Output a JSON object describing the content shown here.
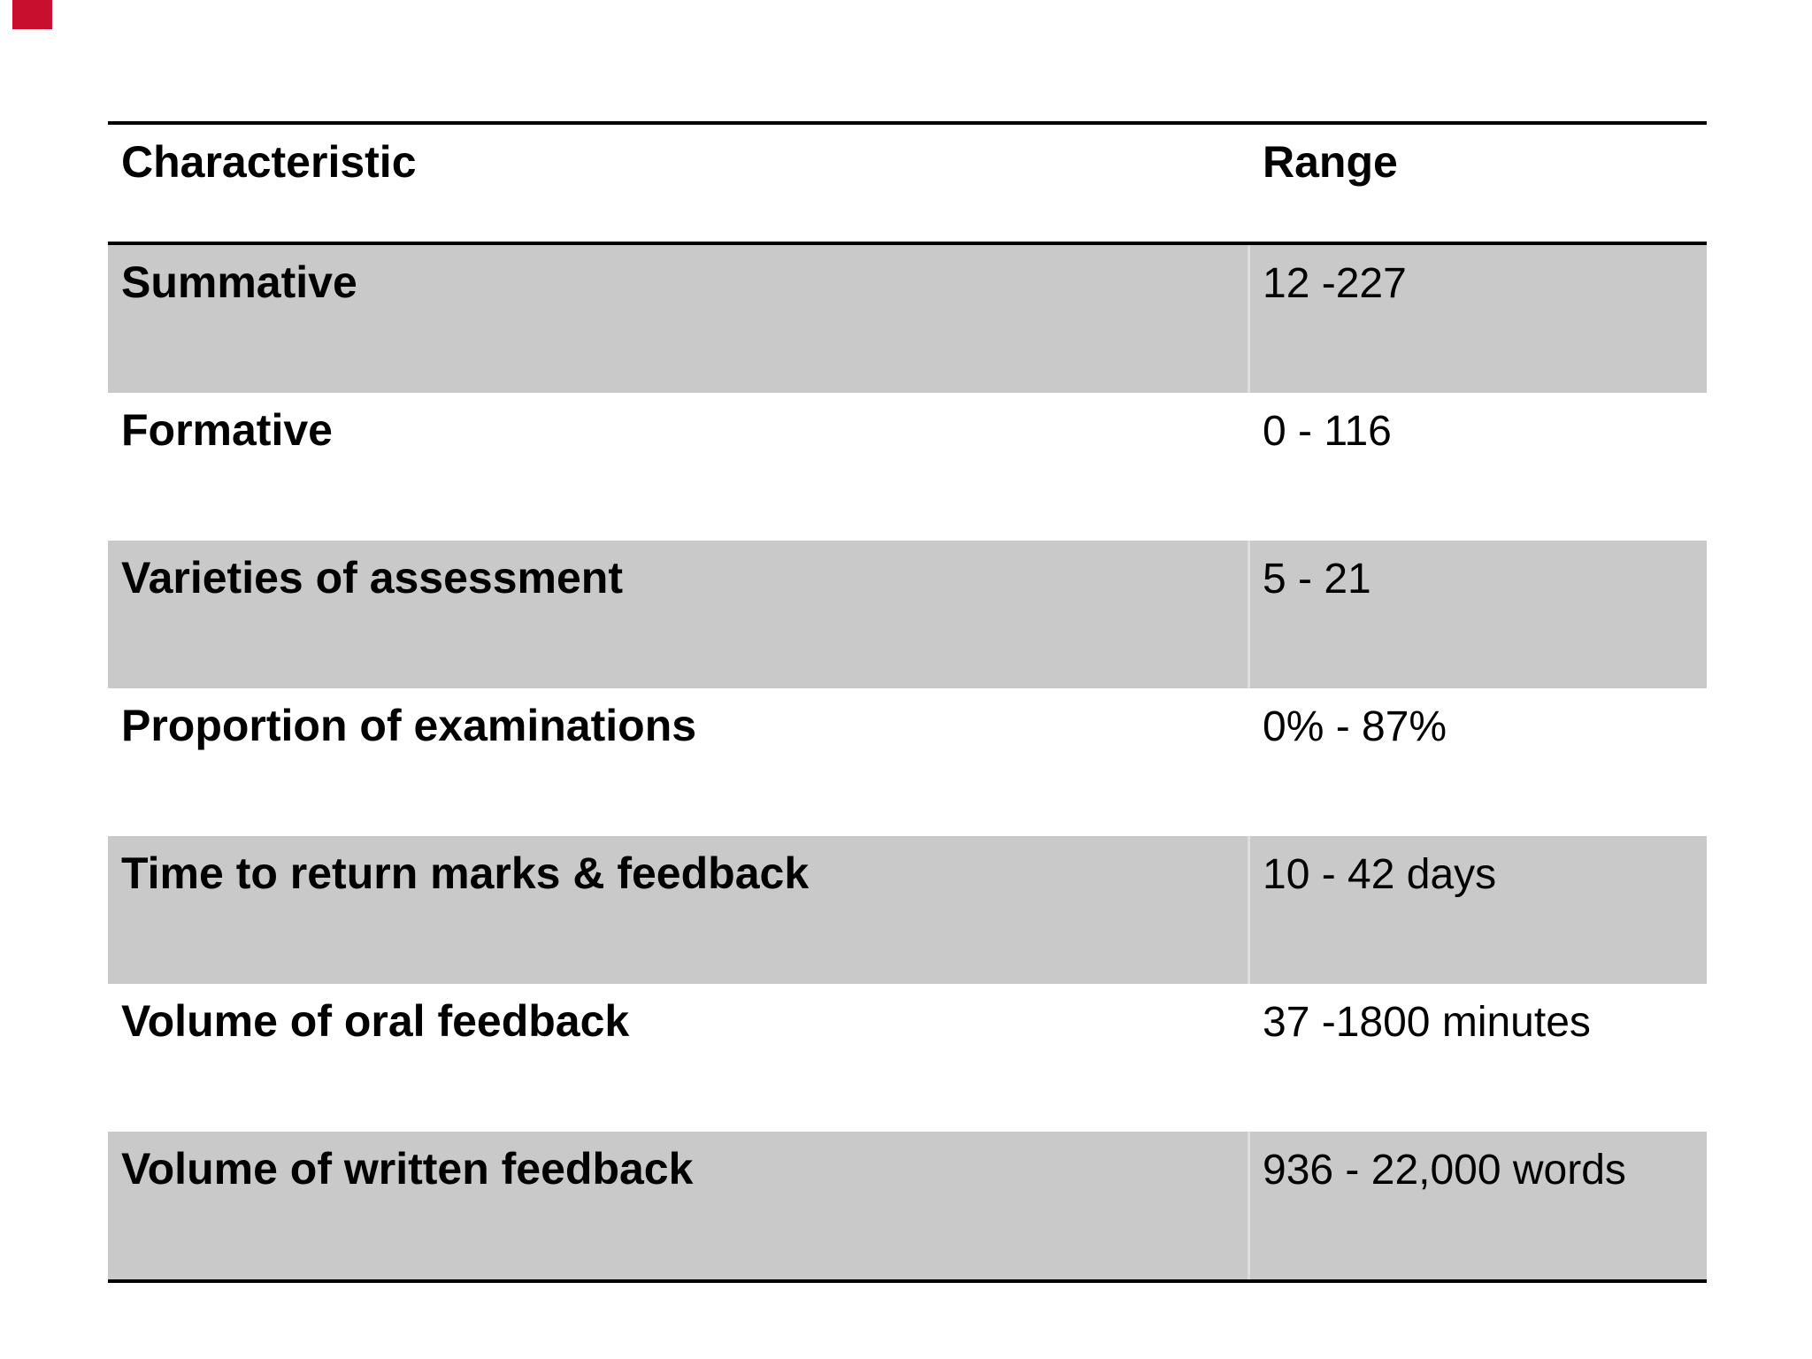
{
  "page": {
    "background_color": "#ffffff"
  },
  "red_marker": {
    "color": "#c8102e"
  },
  "table": {
    "border_color": "#000000",
    "shaded_row_color": "#c9c9c9",
    "divider_color": "#dddddd",
    "columns": [
      "Characteristic",
      "Range"
    ],
    "rows": [
      {
        "characteristic": "Summative",
        "range": "12 -227"
      },
      {
        "characteristic": "Formative",
        "range": "0 - 116"
      },
      {
        "characteristic": "Varieties of assessment",
        "range": "5 - 21"
      },
      {
        "characteristic": "Proportion of examinations",
        "range": "0% - 87%"
      },
      {
        "characteristic": "Time to return marks & feedback",
        "range": "10 - 42 days"
      },
      {
        "characteristic": "Volume of oral feedback",
        "range": "37 -1800 minutes"
      },
      {
        "characteristic": "Volume of written feedback",
        "range": "936 - 22,000 words"
      }
    ]
  }
}
